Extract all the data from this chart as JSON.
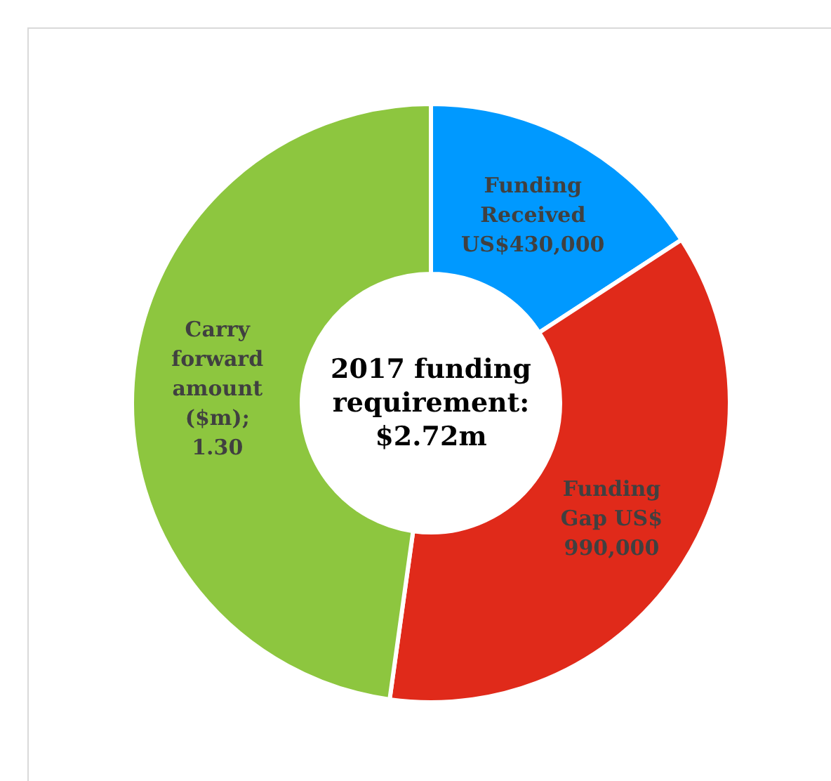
{
  "chart_data": {
    "type": "donut",
    "title": "2017 funding requirement: $2.72m",
    "categories": [
      "Funding Received US$430,000",
      "Funding Gap US$ 990,000",
      "Carry forward amount ($m); 1.30"
    ],
    "values": [
      0.43,
      0.99,
      1.3
    ],
    "colors": [
      "#0099ff",
      "#e02a1a",
      "#8dc63f"
    ],
    "legend": false
  }
}
